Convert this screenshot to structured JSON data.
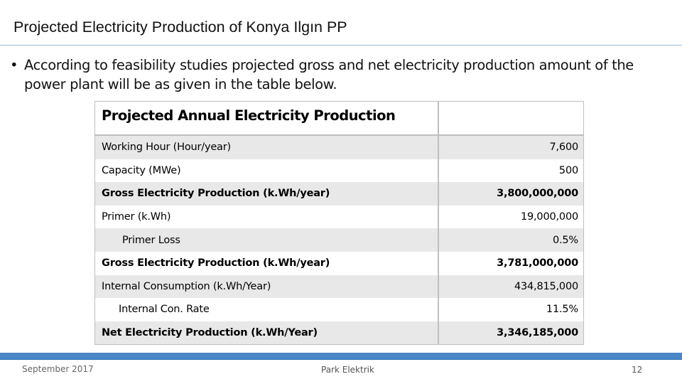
{
  "slide": {
    "title": "Projected Electricity Production of Konya Ilgın PP",
    "bullet": "According to feasibility studies projected gross and net electricity production amount of the power plant will be as given in the table below."
  },
  "table": {
    "header": "Projected Annual Electricity Production",
    "header_value": "",
    "rows": [
      {
        "label": "Working Hour (Hour/year)",
        "value": "7,600"
      },
      {
        "label": "Capacity (MWe)",
        "value": "500"
      },
      {
        "label": "Gross Electricity Production (k.Wh/year)",
        "value": "3,800,000,000"
      },
      {
        "label": "Primer (k.Wh)",
        "value": "19,000,000"
      },
      {
        "label": "Primer Loss",
        "value": "0.5%"
      },
      {
        "label": "Gross Electricity Production (k.Wh/year)",
        "value": "3,781,000,000"
      },
      {
        "label": "Internal Consumption (k.Wh/Year)",
        "value": "434,815,000"
      },
      {
        "label": "Internal Con. Rate",
        "value": "11.5%"
      },
      {
        "label": "Net Electricity Production (k.Wh/Year)",
        "value": "3,346,185,000"
      }
    ]
  },
  "footer": {
    "date": "September 2017",
    "company": "Park Elektrik",
    "page": "12"
  },
  "colors": {
    "accent": "#4a86c8",
    "row_shade": "#e8e8e8",
    "border": "#bfbfbf"
  }
}
